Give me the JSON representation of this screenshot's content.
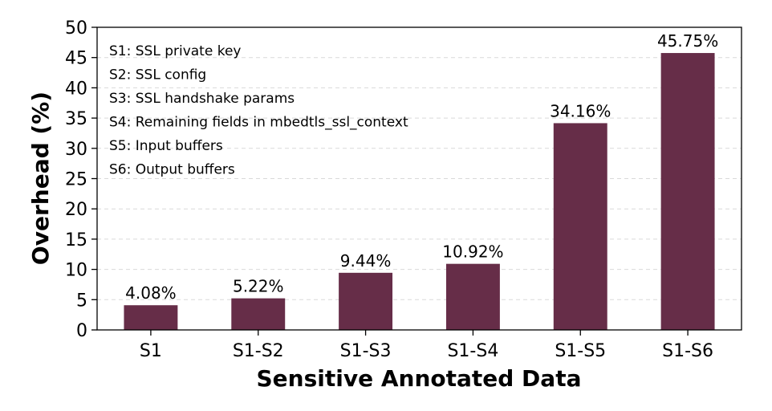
{
  "chart_data": {
    "type": "bar",
    "xlabel": "Sensitive Annotated Data",
    "ylabel": "Overhead (%)",
    "ylim": [
      0,
      50
    ],
    "yticks": [
      0,
      5,
      10,
      15,
      20,
      25,
      30,
      35,
      40,
      45,
      50
    ],
    "grid": "horizontal dashed",
    "categories": [
      "S1",
      "S1-S2",
      "S1-S3",
      "S1-S4",
      "S1-S5",
      "S1-S6"
    ],
    "values": [
      4.08,
      5.22,
      9.44,
      10.92,
      34.16,
      45.75
    ],
    "value_labels": [
      "4.08%",
      "5.22%",
      "9.44%",
      "10.92%",
      "34.16%",
      "45.75%"
    ],
    "bar_color": "#662d48",
    "legend_placement": "top-left",
    "annotations": [
      "S1: SSL private key",
      "S2: SSL config",
      "S3: SSL handshake params",
      "S4: Remaining fields in mbedtls_ssl_context",
      "S5: Input buffers",
      "S6: Output buffers"
    ]
  }
}
